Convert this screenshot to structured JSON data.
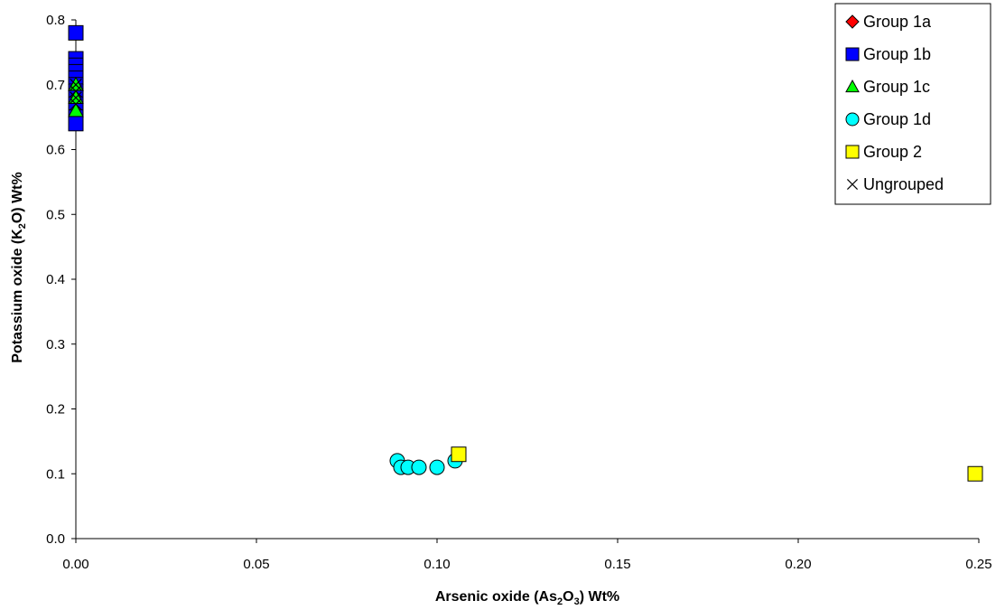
{
  "chart_data": {
    "type": "scatter",
    "title": "",
    "xlabel": {
      "prefix": "Arsenic oxide (As",
      "sub1": "2",
      "mid": "O",
      "sub2": "3",
      "suffix": ") Wt%"
    },
    "ylabel": {
      "prefix": "Potassium oxide (K",
      "sub1": "2",
      "suffix": "O) Wt%"
    },
    "xlim": [
      0,
      0.25
    ],
    "ylim": [
      0,
      0.8
    ],
    "x_ticks": [
      "0.00",
      "0.05",
      "0.10",
      "0.15",
      "0.20",
      "0.25"
    ],
    "y_ticks": [
      "0.0",
      "0.1",
      "0.2",
      "0.3",
      "0.4",
      "0.5",
      "0.6",
      "0.7",
      "0.8"
    ],
    "grid": false,
    "legend_position": "top-right",
    "series": [
      {
        "name": "Group 1a",
        "marker": "diamond",
        "color": "#ff0000",
        "x": [
          0,
          0
        ],
        "y": [
          0.7,
          0.69
        ]
      },
      {
        "name": "Group 1b",
        "marker": "square",
        "color": "#0000ff",
        "x": [
          0,
          0,
          0,
          0,
          0,
          0,
          0,
          0,
          0,
          0,
          0,
          0
        ],
        "y": [
          0.78,
          0.74,
          0.73,
          0.72,
          0.71,
          0.7,
          0.69,
          0.68,
          0.67,
          0.66,
          0.65,
          0.64
        ]
      },
      {
        "name": "Group 1c",
        "marker": "triangle",
        "color": "#00ff00",
        "x": [
          0,
          0,
          0
        ],
        "y": [
          0.7,
          0.68,
          0.66
        ]
      },
      {
        "name": "Group 1d",
        "marker": "circle",
        "color": "#00ffff",
        "x": [
          0.089,
          0.09,
          0.092,
          0.095,
          0.1,
          0.105
        ],
        "y": [
          0.12,
          0.11,
          0.11,
          0.11,
          0.11,
          0.12
        ]
      },
      {
        "name": "Group 2",
        "marker": "square",
        "color": "#ffff00",
        "x": [
          0.106,
          0.249
        ],
        "y": [
          0.13,
          0.1
        ]
      },
      {
        "name": "Ungrouped",
        "marker": "x",
        "color": "#000000",
        "x": [
          0,
          0,
          0,
          0
        ],
        "y": [
          0.7,
          0.69,
          0.68,
          0.67
        ]
      }
    ]
  }
}
